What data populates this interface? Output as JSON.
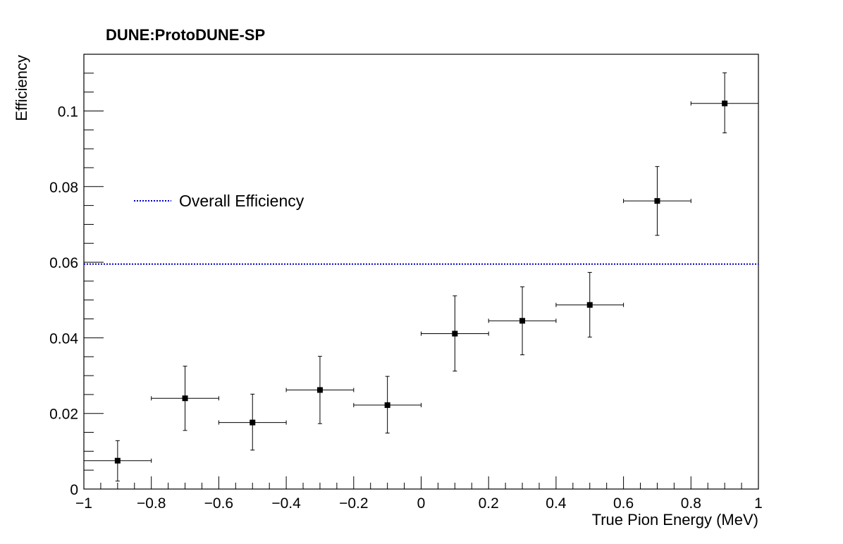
{
  "chart_data": {
    "type": "scatter",
    "title": "DUNE:ProtoDUNE-SP",
    "xlabel": "True Pion Energy (MeV)",
    "ylabel": "Efficiency",
    "xlim": [
      -1,
      1
    ],
    "ylim": [
      0,
      0.115
    ],
    "xticks": [
      -1,
      -0.8,
      -0.6,
      -0.4,
      -0.2,
      0,
      0.2,
      0.4,
      0.6,
      0.8,
      1
    ],
    "xtick_labels": [
      "−1",
      "−0.8",
      "−0.6",
      "−0.4",
      "−0.2",
      "0",
      "0.2",
      "0.4",
      "0.6",
      "0.8",
      "1"
    ],
    "yticks": [
      0,
      0.02,
      0.04,
      0.06,
      0.08,
      0.1
    ],
    "ytick_labels": [
      "0",
      "0.02",
      "0.04",
      "0.06",
      "0.08",
      "0.1"
    ],
    "grid": false,
    "legend_placement": "upper-left",
    "marker_color": "#000000",
    "reference_line_color": "#0000cc",
    "series": [
      {
        "x": [
          -0.9,
          -0.7,
          -0.5,
          -0.3,
          -0.1,
          0.1,
          0.3,
          0.5,
          0.7,
          0.9
        ],
        "y": [
          0.0075,
          0.024,
          0.0176,
          0.0262,
          0.0222,
          0.0411,
          0.0445,
          0.0487,
          0.0762,
          0.102
        ],
        "x_err": [
          0.1,
          0.1,
          0.1,
          0.1,
          0.1,
          0.1,
          0.1,
          0.1,
          0.1,
          0.1
        ],
        "y_low": [
          0.0021,
          0.0155,
          0.0103,
          0.0173,
          0.0148,
          0.0312,
          0.0355,
          0.0402,
          0.0671,
          0.0942
        ],
        "y_high": [
          0.0128,
          0.0325,
          0.0251,
          0.0351,
          0.0298,
          0.0511,
          0.0535,
          0.0573,
          0.0853,
          0.1101
        ]
      }
    ],
    "reference_lines": [
      {
        "name": "Overall Efficiency",
        "y": 0.0595,
        "style": "dotted"
      }
    ]
  }
}
